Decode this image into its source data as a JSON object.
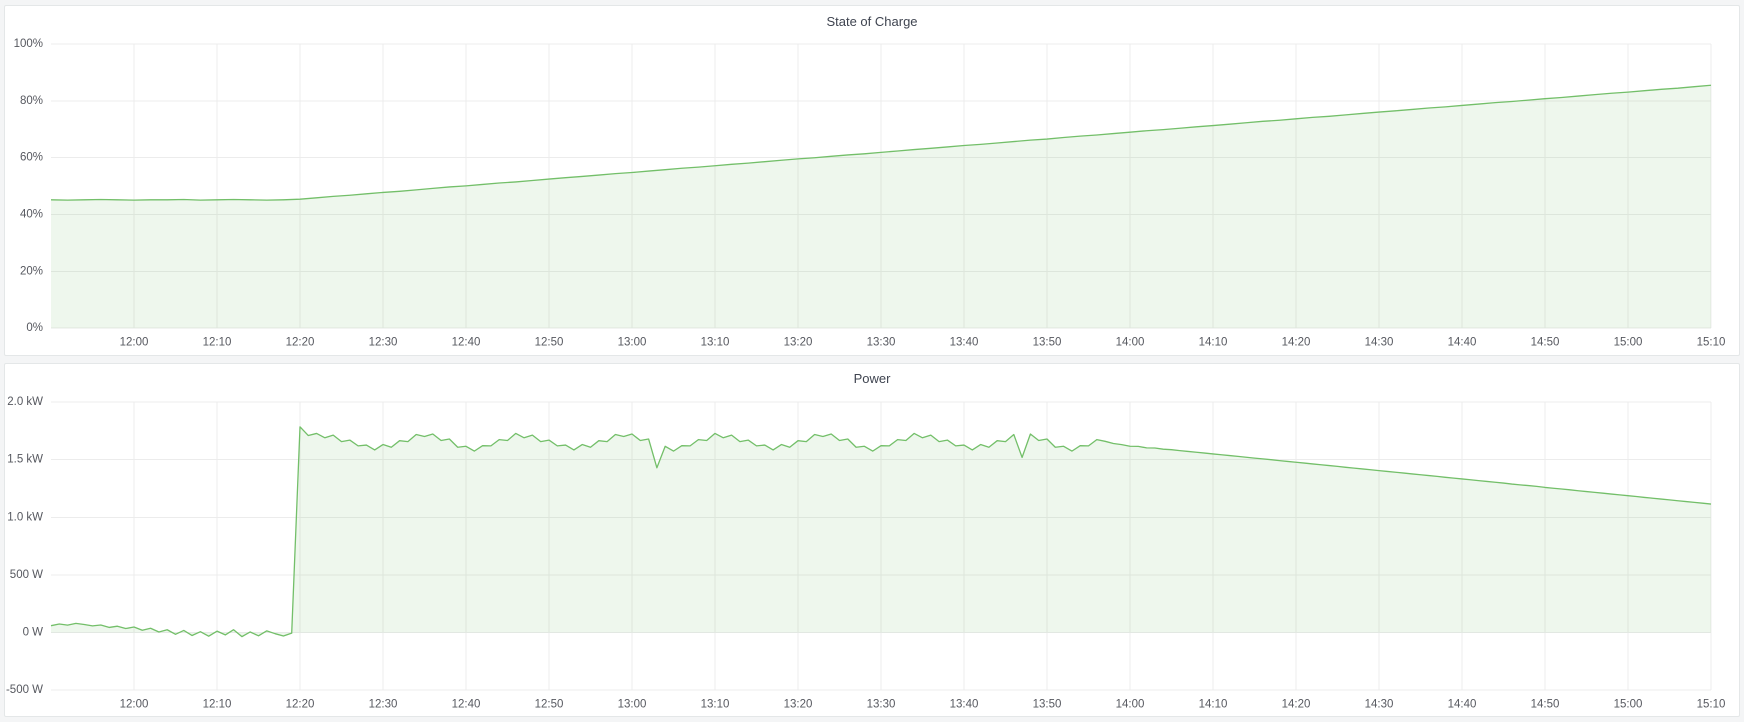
{
  "page": {
    "background": "#f4f5f6",
    "panel_background": "#ffffff"
  },
  "chart_data": [
    {
      "type": "area",
      "title": "State of Charge",
      "xlabel": "",
      "ylabel": "",
      "x_unit": "minutes since 11:50",
      "xlim": [
        0,
        200
      ],
      "ylim": [
        0,
        100
      ],
      "grid": true,
      "legend": "none",
      "y_ticks": {
        "values": [
          0,
          20,
          40,
          60,
          80,
          100
        ],
        "labels": [
          "0%",
          "20%",
          "40%",
          "60%",
          "80%",
          "100%"
        ]
      },
      "x_ticks": {
        "t": [
          10,
          20,
          30,
          40,
          50,
          60,
          70,
          80,
          90,
          100,
          110,
          120,
          130,
          140,
          150,
          160,
          170,
          180,
          190,
          200
        ],
        "labels": [
          "12:00",
          "12:10",
          "12:20",
          "12:30",
          "12:40",
          "12:50",
          "13:00",
          "13:10",
          "13:20",
          "13:30",
          "13:40",
          "13:50",
          "14:00",
          "14:10",
          "14:20",
          "14:30",
          "14:40",
          "14:50",
          "15:00",
          "15:10"
        ]
      },
      "series": [
        {
          "name": "State of Charge",
          "unit": "%",
          "color": "#73bf69",
          "fill": "rgba(115,191,105,0.12)",
          "t0": 0,
          "dt": 2,
          "values": [
            45.2,
            45.1,
            45.2,
            45.3,
            45.2,
            45.1,
            45.2,
            45.2,
            45.3,
            45.1,
            45.2,
            45.3,
            45.2,
            45.1,
            45.2,
            45.4,
            45.9,
            46.4,
            46.8,
            47.3,
            47.8,
            48.2,
            48.7,
            49.2,
            49.7,
            50.1,
            50.6,
            51.1,
            51.5,
            52.0,
            52.5,
            53.0,
            53.4,
            53.9,
            54.4,
            54.8,
            55.3,
            55.8,
            56.3,
            56.7,
            57.2,
            57.7,
            58.1,
            58.6,
            59.1,
            59.6,
            60.0,
            60.5,
            61.0,
            61.4,
            61.9,
            62.4,
            62.9,
            63.3,
            63.8,
            64.3,
            64.7,
            65.2,
            65.7,
            66.2,
            66.6,
            67.1,
            67.6,
            68.0,
            68.5,
            69.0,
            69.5,
            69.9,
            70.4,
            70.9,
            71.3,
            71.8,
            72.3,
            72.8,
            73.2,
            73.7,
            74.2,
            74.6,
            75.1,
            75.6,
            76.1,
            76.5,
            77.0,
            77.5,
            77.9,
            78.4,
            78.9,
            79.4,
            79.8,
            80.3,
            80.8,
            81.2,
            81.7,
            82.2,
            82.7,
            83.1,
            83.6,
            84.1,
            84.5,
            85.0,
            85.5
          ]
        }
      ]
    },
    {
      "type": "area",
      "title": "Power",
      "xlabel": "",
      "ylabel": "",
      "x_unit": "minutes since 11:50",
      "xlim": [
        0,
        200
      ],
      "ylim": [
        -500,
        2000
      ],
      "grid": true,
      "legend": "none",
      "y_ticks": {
        "values": [
          -500,
          0,
          500,
          1000,
          1500,
          2000
        ],
        "labels": [
          "-500 W",
          "0 W",
          "500 W",
          "1.0 kW",
          "1.5 kW",
          "2.0 kW"
        ]
      },
      "x_ticks": {
        "t": [
          10,
          20,
          30,
          40,
          50,
          60,
          70,
          80,
          90,
          100,
          110,
          120,
          130,
          140,
          150,
          160,
          170,
          180,
          190,
          200
        ],
        "labels": [
          "12:00",
          "12:10",
          "12:20",
          "12:30",
          "12:40",
          "12:50",
          "13:00",
          "13:10",
          "13:20",
          "13:30",
          "13:40",
          "13:50",
          "14:00",
          "14:10",
          "14:20",
          "14:30",
          "14:40",
          "14:50",
          "15:00",
          "15:10"
        ]
      },
      "series": [
        {
          "name": "Power",
          "unit": "W",
          "color": "#73bf69",
          "fill": "rgba(115,191,105,0.12)",
          "t0": 0,
          "dt": 1,
          "values": [
            60,
            75,
            65,
            80,
            70,
            58,
            66,
            45,
            55,
            35,
            48,
            20,
            38,
            5,
            25,
            -15,
            18,
            -25,
            8,
            -32,
            12,
            -20,
            25,
            -35,
            5,
            -28,
            15,
            -10,
            -30,
            -5,
            1785,
            1710,
            1728,
            1690,
            1713,
            1657,
            1670,
            1620,
            1627,
            1585,
            1632,
            1608,
            1665,
            1657,
            1718,
            1702,
            1723,
            1667,
            1680,
            1608,
            1617,
            1575,
            1622,
            1620,
            1675,
            1667,
            1728,
            1690,
            1713,
            1657,
            1670,
            1620,
            1627,
            1585,
            1632,
            1608,
            1665,
            1657,
            1718,
            1702,
            1723,
            1667,
            1680,
            1430,
            1617,
            1575,
            1622,
            1620,
            1675,
            1667,
            1728,
            1690,
            1713,
            1657,
            1670,
            1620,
            1627,
            1585,
            1632,
            1608,
            1665,
            1657,
            1718,
            1702,
            1723,
            1667,
            1680,
            1608,
            1617,
            1575,
            1622,
            1620,
            1675,
            1667,
            1728,
            1690,
            1713,
            1657,
            1670,
            1620,
            1627,
            1585,
            1632,
            1608,
            1665,
            1657,
            1718,
            1520,
            1723,
            1667,
            1680,
            1608,
            1617,
            1575,
            1622,
            1620,
            1675,
            1660,
            1640,
            1631,
            1617,
            1616,
            1603,
            1602,
            1591,
            1587,
            1579,
            1572,
            1565,
            1558,
            1550,
            1543,
            1536,
            1529,
            1521,
            1514,
            1507,
            1500,
            1492,
            1485,
            1478,
            1471,
            1463,
            1456,
            1449,
            1442,
            1434,
            1427,
            1420,
            1413,
            1405,
            1398,
            1391,
            1384,
            1376,
            1369,
            1362,
            1355,
            1347,
            1340,
            1333,
            1326,
            1318,
            1311,
            1304,
            1297,
            1289,
            1282,
            1275,
            1268,
            1260,
            1253,
            1246,
            1239,
            1231,
            1224,
            1217,
            1210,
            1202,
            1195,
            1188,
            1181,
            1173,
            1166,
            1159,
            1152,
            1144,
            1137,
            1130,
            1123,
            1115
          ]
        }
      ]
    }
  ]
}
